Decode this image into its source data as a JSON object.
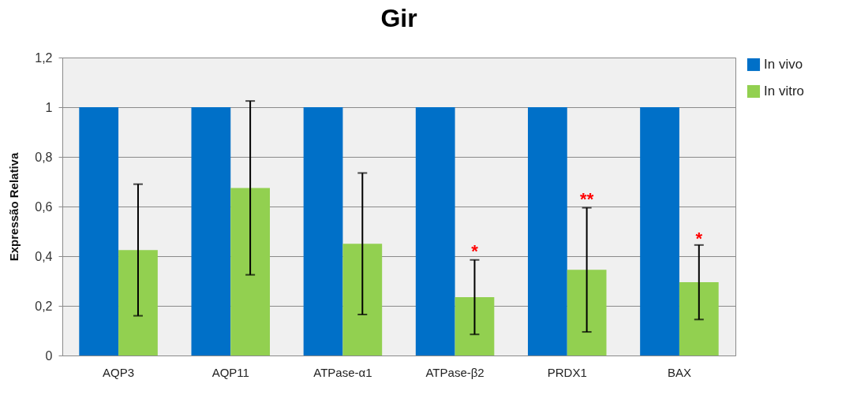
{
  "chart_data": {
    "type": "bar",
    "title": "Gir",
    "ylabel": "Expressão Relativa",
    "categories": [
      "AQP3",
      "AQP11",
      "ATPase-α1",
      "ATPase-β2",
      "PRDX1",
      "BAX"
    ],
    "series": [
      {
        "name": "In vivo",
        "color": "#0070c8",
        "values": [
          1,
          1,
          1,
          1,
          1,
          1
        ]
      },
      {
        "name": "In vitro",
        "color": "#92d050",
        "values": [
          0.425,
          0.675,
          0.45,
          0.235,
          0.345,
          0.295
        ],
        "errors": [
          0.265,
          0.35,
          0.285,
          0.15,
          0.25,
          0.15
        ]
      }
    ],
    "ylim": [
      0,
      1.2
    ],
    "yticks": [
      {
        "value": 0,
        "label": "0"
      },
      {
        "value": 0.2,
        "label": "0,2"
      },
      {
        "value": 0.4,
        "label": "0,4"
      },
      {
        "value": 0.6,
        "label": "0,6"
      },
      {
        "value": 0.8,
        "label": "0,8"
      },
      {
        "value": 1,
        "label": "1"
      },
      {
        "value": 1.2,
        "label": "1,2"
      }
    ],
    "grid": "y",
    "legend": "right",
    "annotations": [
      {
        "text": "*",
        "x": "ATPase-β2",
        "y": 0.42
      },
      {
        "text": "**",
        "x": "PRDX1",
        "y": 0.63
      },
      {
        "text": "*",
        "x": "BAX",
        "y": 0.47
      }
    ]
  }
}
